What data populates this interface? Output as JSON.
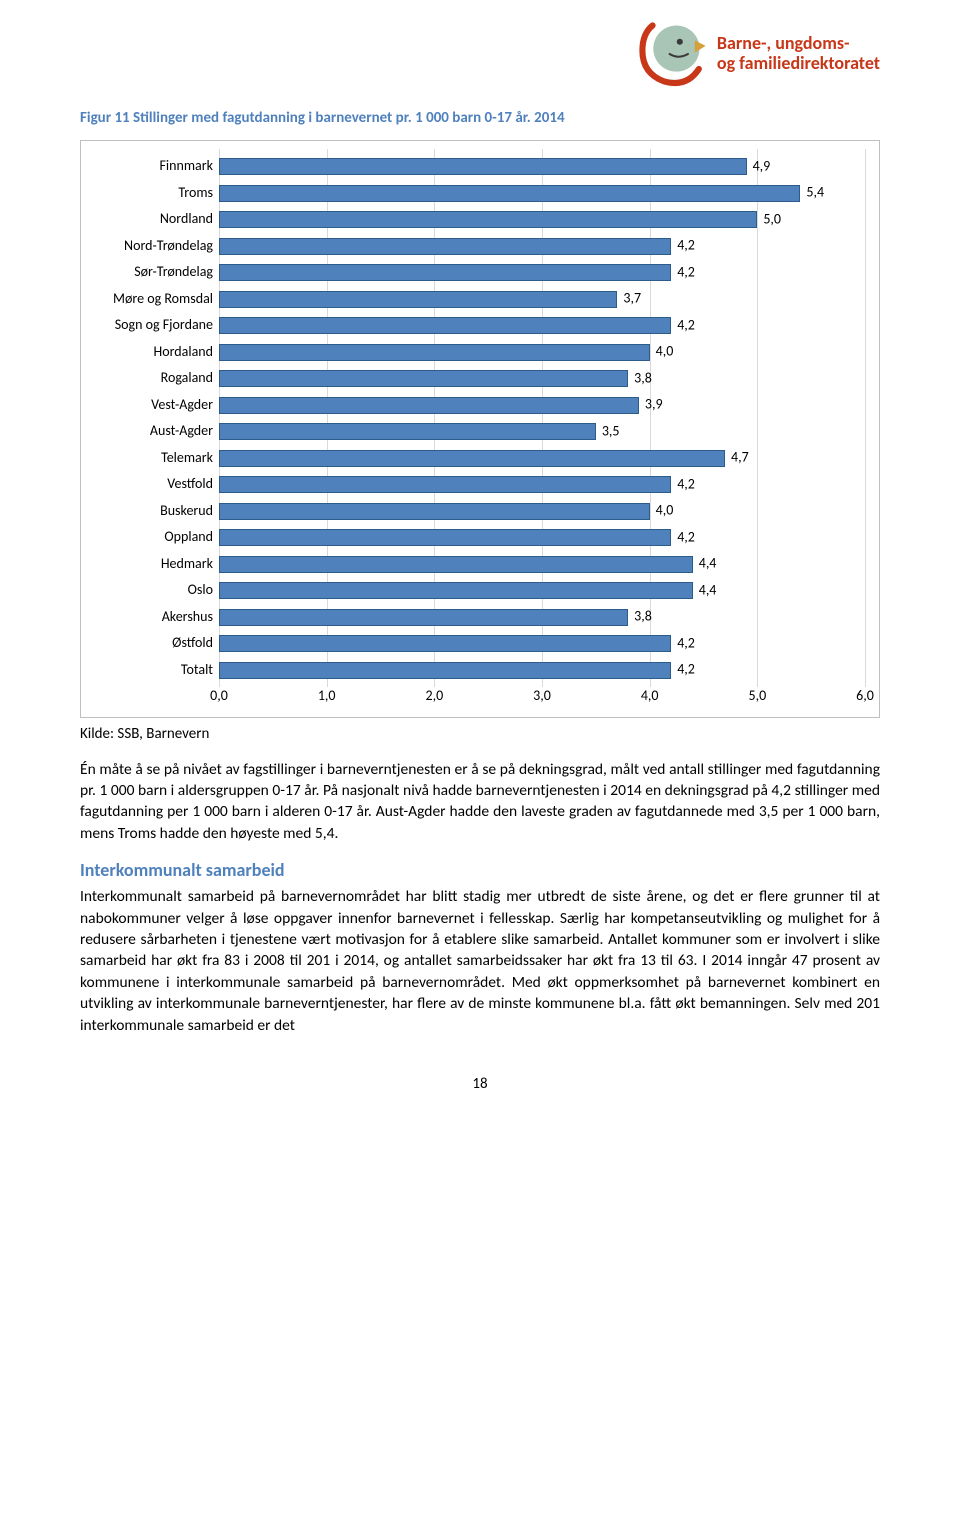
{
  "logo": {
    "line1": "Barne-, ungdoms-",
    "line2": "og familiedirektoratet",
    "text_color": "#c73718",
    "head_fill": "#a8c5b5",
    "beak_fill": "#d4a03a",
    "eye_fill": "#3a3a3a",
    "arc_fill": "#c73718"
  },
  "figure_title": "Figur 11 Stillinger med fagutdanning i barnevernet pr. 1 000 barn 0-17 år. 2014",
  "chart": {
    "type": "bar-horizontal",
    "xlim": [
      0.0,
      6.0
    ],
    "xtick_step": 1.0,
    "xtick_labels": [
      "0,0",
      "1,0",
      "2,0",
      "3,0",
      "4,0",
      "5,0",
      "6,0"
    ],
    "bar_fill": "#4f81bd",
    "bar_border": "#2e5c8a",
    "grid_color": "#d9d9d9",
    "border_color": "#bfbfbf",
    "label_fontsize": 14,
    "categories": [
      {
        "name": "Finnmark",
        "value": 4.9,
        "label": "4,9"
      },
      {
        "name": "Troms",
        "value": 5.4,
        "label": "5,4"
      },
      {
        "name": "Nordland",
        "value": 5.0,
        "label": "5,0"
      },
      {
        "name": "Nord-Trøndelag",
        "value": 4.2,
        "label": "4,2"
      },
      {
        "name": "Sør-Trøndelag",
        "value": 4.2,
        "label": "4,2"
      },
      {
        "name": "Møre og Romsdal",
        "value": 3.7,
        "label": "3,7"
      },
      {
        "name": "Sogn og Fjordane",
        "value": 4.2,
        "label": "4,2"
      },
      {
        "name": "Hordaland",
        "value": 4.0,
        "label": "4,0"
      },
      {
        "name": "Rogaland",
        "value": 3.8,
        "label": "3,8"
      },
      {
        "name": "Vest-Agder",
        "value": 3.9,
        "label": "3,9"
      },
      {
        "name": "Aust-Agder",
        "value": 3.5,
        "label": "3,5"
      },
      {
        "name": "Telemark",
        "value": 4.7,
        "label": "4,7"
      },
      {
        "name": "Vestfold",
        "value": 4.2,
        "label": "4,2"
      },
      {
        "name": "Buskerud",
        "value": 4.0,
        "label": "4,0"
      },
      {
        "name": "Oppland",
        "value": 4.2,
        "label": "4,2"
      },
      {
        "name": "Hedmark",
        "value": 4.4,
        "label": "4,4"
      },
      {
        "name": "Oslo",
        "value": 4.4,
        "label": "4,4"
      },
      {
        "name": "Akershus",
        "value": 3.8,
        "label": "3,8"
      },
      {
        "name": "Østfold",
        "value": 4.2,
        "label": "4,2"
      },
      {
        "name": "Totalt",
        "value": 4.2,
        "label": "4,2"
      }
    ]
  },
  "kilde": "Kilde: SSB, Barnevern",
  "para1": "Én måte å se på nivået av fagstillinger i barneverntjenesten er å se på dekningsgrad, målt ved antall stillinger med fagutdanning pr. 1 000 barn i aldersgruppen 0-17 år. På nasjonalt nivå hadde barneverntjenesten i 2014 en dekningsgrad på 4,2 stillinger med fagutdanning per 1 000 barn i alderen 0-17 år. Aust-Agder hadde den laveste graden av fagutdannede med 3,5 per 1 000 barn, mens Troms hadde den høyeste med 5,4.",
  "section_heading": "Interkommunalt samarbeid",
  "para2": "Interkommunalt samarbeid på barnevernområdet har blitt stadig mer utbredt de siste årene, og det er flere grunner til at nabokommuner velger å løse oppgaver innenfor barnevernet i fellesskap. Særlig har kompetanseutvikling og mulighet for å redusere sårbarheten i tjenestene vært motivasjon for å etablere slike samarbeid. Antallet kommuner som er involvert i slike samarbeid har økt fra 83 i 2008 til 201 i 2014, og antallet samarbeidssaker har økt fra 13 til 63. I 2014 inngår 47 prosent av kommunene i interkommunale samarbeid på barnevernområdet. Med økt oppmerksomhet på barnevernet kombinert en utvikling av interkommunale barneverntjenester, har flere av de minste kommunene bl.a. fått økt bemanningen. Selv med 201 interkommunale samarbeid er det",
  "page_number": "18"
}
